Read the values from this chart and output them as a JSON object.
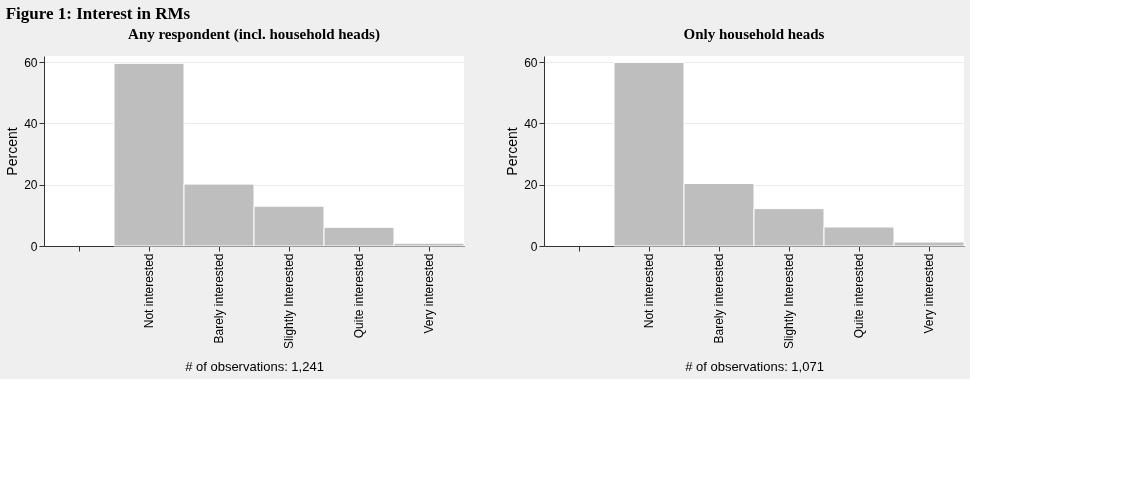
{
  "chart_data": [
    {
      "type": "bar",
      "title": "Figure 1: Interest in RMs",
      "subtitle": "Any respondent (incl. household heads)",
      "ylabel": "Percent",
      "categories": [
        "Not interested",
        "Barely interested",
        "Slightly Interested",
        "Quite interested",
        "Very interested"
      ],
      "values": [
        59.6,
        20.2,
        13.0,
        6.1,
        0.9
      ],
      "color": "#bebebe",
      "ylim": [
        0,
        62
      ],
      "yticks": [
        0,
        20,
        40,
        60
      ],
      "grid": "y",
      "annotations": [
        "# of observations: 1,241"
      ]
    },
    {
      "type": "bar",
      "subtitle": "Only household heads",
      "ylabel": "Percent",
      "categories": [
        "Not interested",
        "Barely interested",
        "Slightly Interested",
        "Quite interested",
        "Very interested"
      ],
      "values": [
        59.9,
        20.4,
        12.2,
        6.2,
        1.3
      ],
      "color": "#bebebe",
      "ylim": [
        0,
        62
      ],
      "yticks": [
        0,
        20,
        40,
        60
      ],
      "grid": "y",
      "annotations": [
        "# of observations: 1,071"
      ]
    }
  ]
}
